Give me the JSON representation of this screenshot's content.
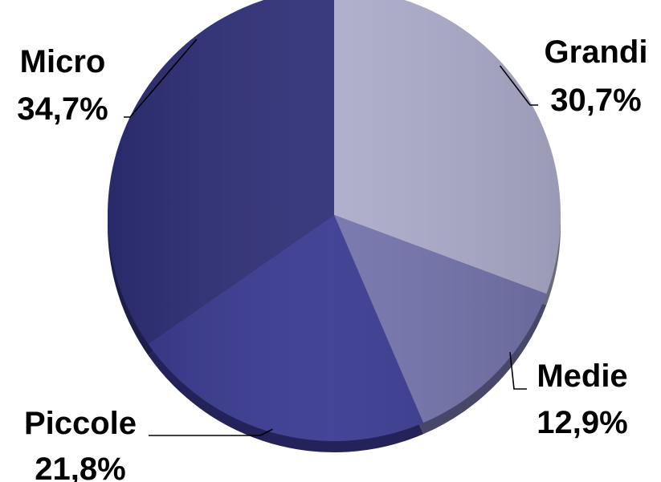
{
  "chart_data": {
    "type": "pie",
    "title": "",
    "start_angle_deg": 0,
    "direction": "clockwise",
    "slices": [
      {
        "name": "Grandi",
        "value": 30.7,
        "value_label": "30,7%",
        "color": "#ABABCA"
      },
      {
        "name": "Medie",
        "value": 12.9,
        "value_label": "12,9%",
        "color": "#7272AA"
      },
      {
        "name": "Piccole",
        "value": 21.8,
        "value_label": "21,8%",
        "color": "#38398F"
      },
      {
        "name": "Micro",
        "value": 34.7,
        "value_label": "34,7%",
        "color": "#2E2F77"
      }
    ],
    "legend": "none",
    "data_labels": "outside-with-leader-lines"
  }
}
